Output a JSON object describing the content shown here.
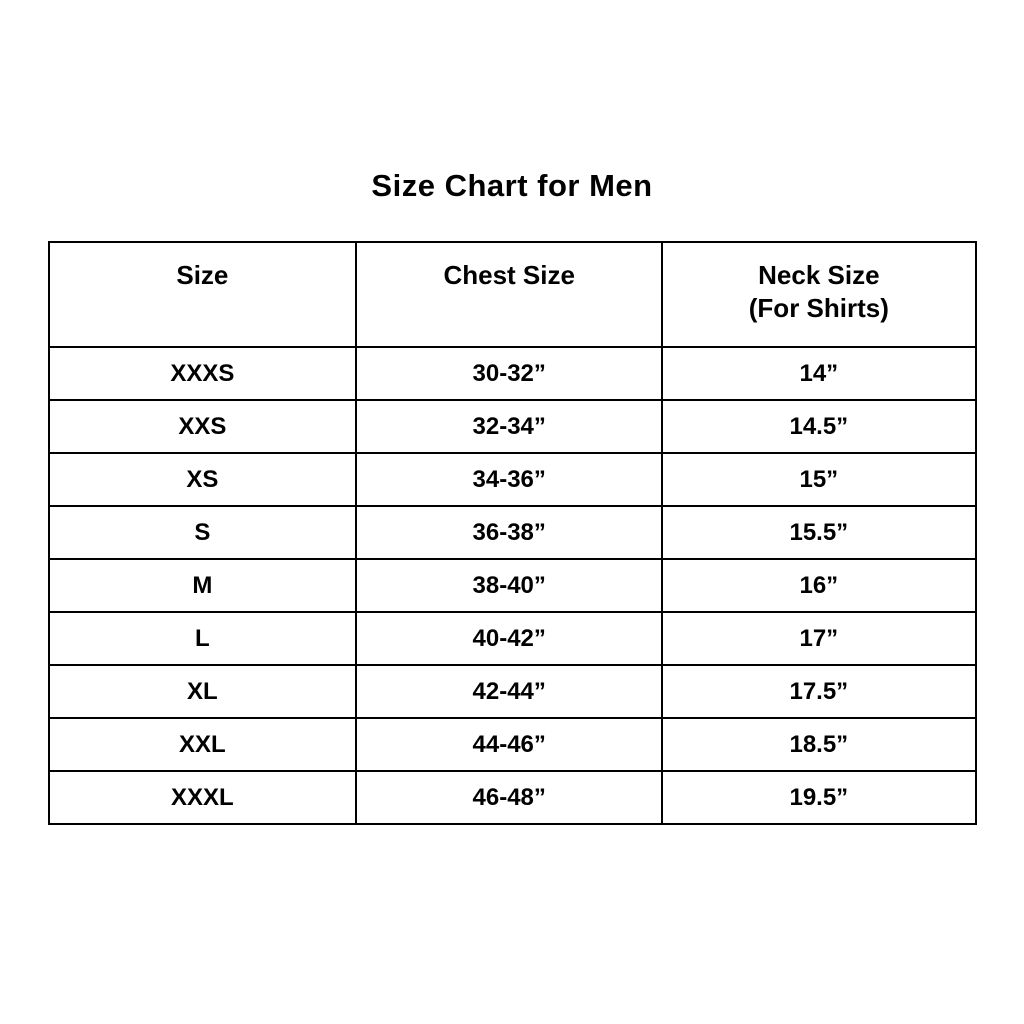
{
  "page": {
    "title": "Size Chart for Men"
  },
  "table": {
    "headers": {
      "size": "Size",
      "chest": "Chest Size",
      "neck_line1": "Neck Size",
      "neck_line2": "(For Shirts)"
    },
    "rows": [
      {
        "size": "XXXS",
        "chest": "30-32”",
        "neck": "14”"
      },
      {
        "size": "XXS",
        "chest": "32-34”",
        "neck": "14.5”"
      },
      {
        "size": "XS",
        "chest": "34-36”",
        "neck": "15”"
      },
      {
        "size": "S",
        "chest": "36-38”",
        "neck": "15.5”"
      },
      {
        "size": "M",
        "chest": "38-40”",
        "neck": "16”"
      },
      {
        "size": "L",
        "chest": "40-42”",
        "neck": "17”"
      },
      {
        "size": "XL",
        "chest": "42-44”",
        "neck": "17.5”"
      },
      {
        "size": "XXL",
        "chest": "44-46”",
        "neck": "18.5”"
      },
      {
        "size": "XXXL",
        "chest": "46-48”",
        "neck": "19.5”"
      }
    ]
  },
  "chart_data": {
    "type": "table",
    "title": "Size Chart for Men",
    "columns": [
      "Size",
      "Chest Size",
      "Neck Size (For Shirts)"
    ],
    "rows": [
      [
        "XXXS",
        "30-32”",
        "14”"
      ],
      [
        "XXS",
        "32-34”",
        "14.5”"
      ],
      [
        "XS",
        "34-36”",
        "15”"
      ],
      [
        "S",
        "36-38”",
        "15.5”"
      ],
      [
        "M",
        "38-40”",
        "16”"
      ],
      [
        "L",
        "40-42”",
        "17”"
      ],
      [
        "XL",
        "42-44”",
        "17.5”"
      ],
      [
        "XXL",
        "44-46”",
        "18.5”"
      ],
      [
        "XXXL",
        "46-48”",
        "19.5”"
      ]
    ],
    "colors": {
      "text": "#000000",
      "border": "#000000",
      "background": "#ffffff"
    }
  }
}
